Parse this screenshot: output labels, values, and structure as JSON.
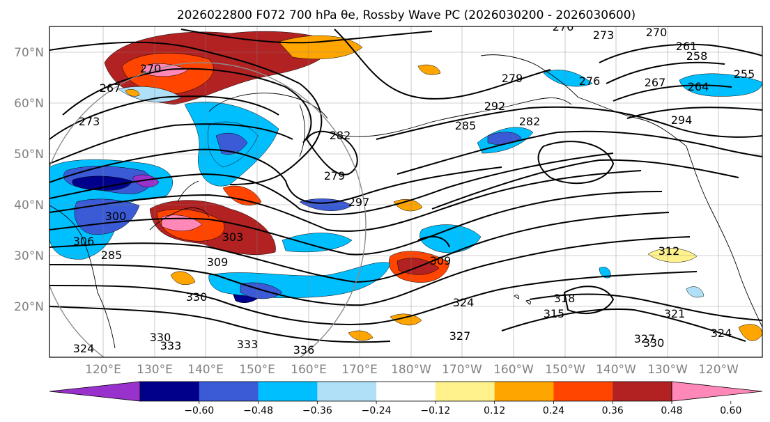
{
  "title": "2026022800 F072 700 hPa θe, Rossby Wave PC (2026030200 - 2026030600)",
  "colors": {
    "frame": "#000000",
    "grid": "#808080",
    "coast": "#000000",
    "contour": "#000000",
    "ring": "#8c8c8c",
    "tick_text": "#808080"
  },
  "map": {
    "lat_labels": [
      "70°N",
      "60°N",
      "50°N",
      "40°N",
      "30°N",
      "20°N"
    ],
    "lon_labels": [
      "120°E",
      "130°E",
      "140°E",
      "150°E",
      "160°E",
      "170°E",
      "180°W",
      "170°W",
      "160°W",
      "150°W",
      "140°W",
      "130°W",
      "120°W"
    ]
  },
  "contour_labels": [
    "276",
    "273",
    "270",
    "261",
    "258",
    "255",
    "270",
    "267",
    "279",
    "276",
    "267",
    "264",
    "273",
    "282",
    "292",
    "285",
    "294",
    "282",
    "279",
    "297",
    "300",
    "306",
    "303",
    "285",
    "309",
    "312",
    "309",
    "324",
    "318",
    "315",
    "321",
    "324",
    "330",
    "327",
    "330",
    "327",
    "330",
    "333",
    "333",
    "336",
    "324"
  ],
  "colorbar": {
    "colors": [
      "#9932cc",
      "#00008b",
      "#3b5bd6",
      "#00bfff",
      "#b0e0f8",
      "#ffffff",
      "#fff28c",
      "#ffa500",
      "#ff4500",
      "#b22222",
      "#ff88b8"
    ],
    "labels": [
      "−0.60",
      "−0.48",
      "−0.36",
      "−0.24",
      "−0.12",
      "0.12",
      "0.24",
      "0.36",
      "0.48",
      "0.60"
    ]
  },
  "anomaly_cells": [
    {
      "color": "#b22222"
    },
    {
      "color": "#ff4500"
    },
    {
      "color": "#ffa500"
    },
    {
      "color": "#ff88b8"
    },
    {
      "color": "#b22222"
    },
    {
      "color": "#ff4500"
    },
    {
      "color": "#ff88b8"
    },
    {
      "color": "#ffa500"
    },
    {
      "color": "#ff4500"
    },
    {
      "color": "#ff4500"
    },
    {
      "color": "#b22222"
    },
    {
      "color": "#ffa500"
    },
    {
      "color": "#ffa500"
    },
    {
      "color": "#fff28c"
    },
    {
      "color": "#b0e0f8"
    },
    {
      "color": "#00bfff"
    },
    {
      "color": "#3b5bd6"
    },
    {
      "color": "#00008b"
    },
    {
      "color": "#9932cc"
    },
    {
      "color": "#3b5bd6"
    },
    {
      "color": "#00bfff"
    },
    {
      "color": "#b0e0f8"
    },
    {
      "color": "#00bfff"
    },
    {
      "color": "#3b5bd6"
    },
    {
      "color": "#00008b"
    },
    {
      "color": "#00bfff"
    },
    {
      "color": "#3b5bd6"
    },
    {
      "color": "#00bfff"
    },
    {
      "color": "#3b5bd6"
    },
    {
      "color": "#00bfff"
    },
    {
      "color": "#3b5bd6"
    },
    {
      "color": "#00bfff"
    },
    {
      "color": "#00bfff"
    },
    {
      "color": "#00bfff"
    },
    {
      "color": "#00bfff"
    },
    {
      "color": "#ffa500"
    },
    {
      "color": "#ffa500"
    },
    {
      "color": "#ffa500"
    },
    {
      "color": "#ffa500"
    }
  ]
}
